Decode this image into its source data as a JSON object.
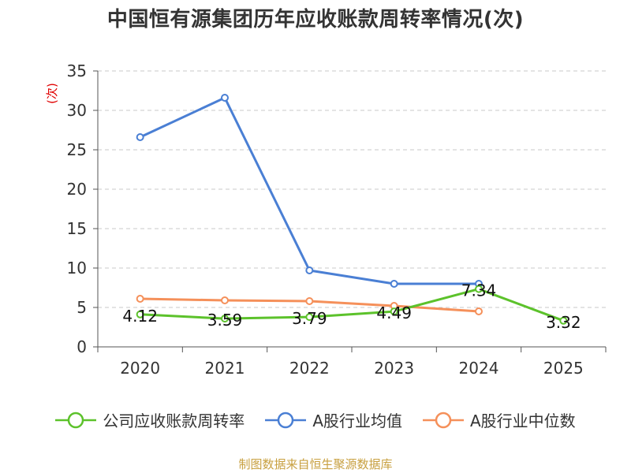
{
  "chart_data": {
    "type": "line",
    "title": "中国恒有源集团历年应收账款周转率情况(次)",
    "ylabel": "(次)",
    "categories": [
      "2020",
      "2021",
      "2022",
      "2023",
      "2024",
      "2025"
    ],
    "ylim": [
      0,
      35
    ],
    "yticks": [
      0,
      5,
      10,
      15,
      20,
      25,
      30,
      35
    ],
    "grid": true,
    "legend_position": "bottom",
    "series": [
      {
        "name": "公司应收账款周转率",
        "color": "#5cc22b",
        "values": [
          4.12,
          3.59,
          3.79,
          4.49,
          7.34,
          3.32
        ],
        "labels": [
          "4.12",
          "3.59",
          "3.79",
          "4.49",
          "7.34",
          "3.32"
        ]
      },
      {
        "name": "A股行业均值",
        "color": "#4a7fd4",
        "values": [
          26.6,
          31.6,
          9.7,
          8.0,
          8.0,
          null
        ]
      },
      {
        "name": "A股行业中位数",
        "color": "#f5905a",
        "values": [
          6.1,
          5.9,
          5.8,
          5.2,
          4.5,
          null
        ]
      }
    ]
  },
  "source": "制图数据来自恒生聚源数据库"
}
